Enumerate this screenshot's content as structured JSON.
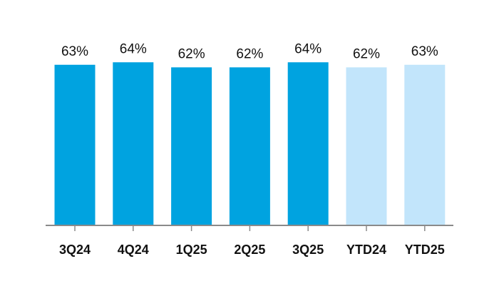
{
  "chart_data": {
    "type": "bar",
    "categories": [
      "3Q24",
      "4Q24",
      "1Q25",
      "2Q25",
      "3Q25",
      "YTD24",
      "YTD25"
    ],
    "values": [
      63,
      64,
      62,
      62,
      64,
      62,
      63
    ],
    "value_labels": [
      "63%",
      "64%",
      "62%",
      "62%",
      "64%",
      "62%",
      "63%"
    ],
    "unit": "%",
    "colors": [
      "#00a3e0",
      "#00a3e0",
      "#00a3e0",
      "#00a3e0",
      "#00a3e0",
      "#c2e5fb",
      "#c2e5fb"
    ],
    "axis_color": "#8a8a8a",
    "grid": false,
    "ylim": [
      0,
      64
    ]
  }
}
